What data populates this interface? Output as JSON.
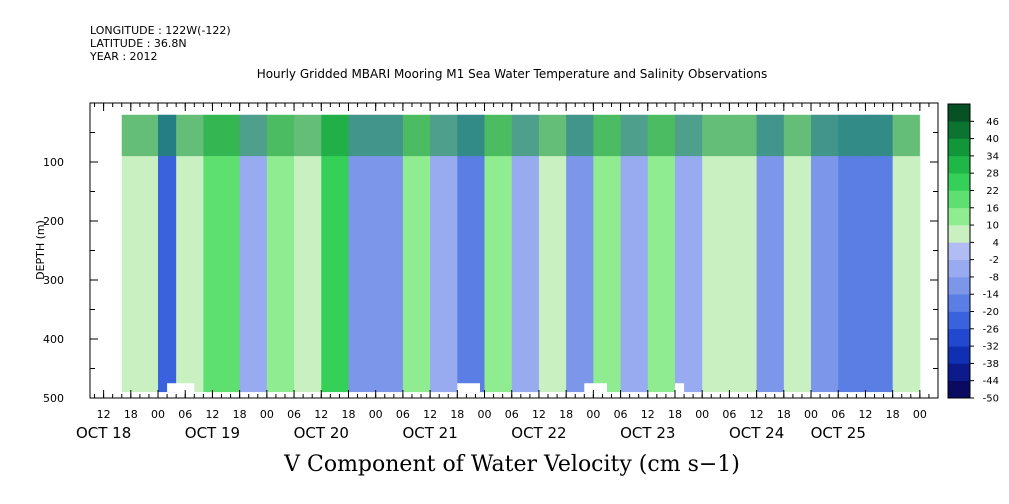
{
  "header": {
    "longitude": "LONGITUDE : 122W(-122)",
    "latitude": "LATITUDE : 36.8N",
    "year": "YEAR : 2012"
  },
  "chart_data": {
    "type": "heatmap",
    "title": "Hourly Gridded MBARI Mooring M1 Sea Water Temperature and Salinity Observations",
    "xlabel": "V Component of Water Velocity (cm s−1)",
    "ylabel": "DEPTH (m)",
    "ylim": [
      500,
      0
    ],
    "y_ticks": [
      100,
      200,
      300,
      400,
      500
    ],
    "y_tick_labels": [
      "100",
      "200",
      "300",
      "400",
      "500"
    ],
    "xlim_hours": [
      -15,
      172
    ],
    "x_hour_ticks": [
      -12,
      -6,
      0,
      6,
      12,
      18,
      24,
      30,
      36,
      42,
      48,
      54,
      60,
      66,
      72,
      78,
      84,
      90,
      96,
      102,
      108,
      114,
      120,
      126,
      132,
      138,
      144,
      150,
      156,
      162,
      168
    ],
    "x_hour_labels": [
      "12",
      "18",
      "00",
      "06",
      "12",
      "18",
      "00",
      "06",
      "12",
      "18",
      "00",
      "06",
      "12",
      "18",
      "00",
      "06",
      "12",
      "18",
      "00",
      "06",
      "12",
      "18",
      "00",
      "06",
      "12",
      "18",
      "00",
      "06",
      "12",
      "18",
      "00"
    ],
    "day_labels": [
      {
        "label": "OCT 18",
        "hour": -12
      },
      {
        "label": "OCT 19",
        "hour": 12
      },
      {
        "label": "OCT 20",
        "hour": 36
      },
      {
        "label": "OCT 21",
        "hour": 60
      },
      {
        "label": "OCT 22",
        "hour": 84
      },
      {
        "label": "OCT 23",
        "hour": 108
      },
      {
        "label": "OCT 24",
        "hour": 132
      },
      {
        "label": "OCT 25",
        "hour": 150
      }
    ],
    "data_extent": {
      "hour_start": -8,
      "hour_end": 168,
      "depth_top": 20,
      "depth_bottom": 490
    },
    "colorbar": {
      "levels": [
        -50,
        -44,
        -38,
        -32,
        -26,
        -20,
        -14,
        -8,
        -2,
        4,
        10,
        16,
        22,
        28,
        34,
        40,
        46
      ],
      "labels": [
        "-50",
        "-44",
        "-38",
        "-32",
        "-26",
        "-20",
        "-14",
        "-8",
        "-2",
        "4",
        "10",
        "16",
        "22",
        "28",
        "34",
        "40",
        "46"
      ],
      "colors": [
        "#0a0a60",
        "#0c1a8c",
        "#1030b4",
        "#2248d0",
        "#3a62dc",
        "#5a7ee4",
        "#7c96ea",
        "#98aaf0",
        "#b2bcf4",
        "#c8f0c0",
        "#90ec90",
        "#5ee070",
        "#34d058",
        "#1fb848",
        "#12963a",
        "#0b7430",
        "#075224"
      ]
    },
    "bands": [
      {
        "from_hour": -8,
        "to_hour": 0,
        "value": 4
      },
      {
        "from_hour": 0,
        "to_hour": 4,
        "value": -26
      },
      {
        "from_hour": 4,
        "to_hour": 10,
        "value": 8
      },
      {
        "from_hour": 10,
        "to_hour": 18,
        "value": 16
      },
      {
        "from_hour": 18,
        "to_hour": 24,
        "value": -8
      },
      {
        "from_hour": 24,
        "to_hour": 30,
        "value": 10
      },
      {
        "from_hour": 30,
        "to_hour": 36,
        "value": 4
      },
      {
        "from_hour": 36,
        "to_hour": 42,
        "value": 22
      },
      {
        "from_hour": 42,
        "to_hour": 48,
        "value": -10
      },
      {
        "from_hour": 48,
        "to_hour": 54,
        "value": -14
      },
      {
        "from_hour": 54,
        "to_hour": 60,
        "value": 10
      },
      {
        "from_hour": 60,
        "to_hour": 66,
        "value": -8
      },
      {
        "from_hour": 66,
        "to_hour": 72,
        "value": -16
      },
      {
        "from_hour": 72,
        "to_hour": 78,
        "value": 12
      },
      {
        "from_hour": 78,
        "to_hour": 84,
        "value": -6
      },
      {
        "from_hour": 84,
        "to_hour": 90,
        "value": 4
      },
      {
        "from_hour": 90,
        "to_hour": 96,
        "value": -12
      },
      {
        "from_hour": 96,
        "to_hour": 102,
        "value": 10
      },
      {
        "from_hour": 102,
        "to_hour": 108,
        "value": -8
      },
      {
        "from_hour": 108,
        "to_hour": 114,
        "value": 10
      },
      {
        "from_hour": 114,
        "to_hour": 120,
        "value": -6
      },
      {
        "from_hour": 120,
        "to_hour": 126,
        "value": 8
      },
      {
        "from_hour": 126,
        "to_hour": 132,
        "value": 4
      },
      {
        "from_hour": 132,
        "to_hour": 138,
        "value": -10
      },
      {
        "from_hour": 138,
        "to_hour": 144,
        "value": 6
      },
      {
        "from_hour": 144,
        "to_hour": 150,
        "value": -14
      },
      {
        "from_hour": 150,
        "to_hour": 156,
        "value": -20
      },
      {
        "from_hour": 156,
        "to_hour": 162,
        "value": -16
      },
      {
        "from_hour": 162,
        "to_hour": 168,
        "value": 4
      }
    ],
    "surface_layer": {
      "depth_top": 20,
      "depth_bottom": 90,
      "value": 34
    },
    "no_data_patches": [
      {
        "from_hour": 2,
        "to_hour": 8,
        "from_depth": 475,
        "to_depth": 490
      },
      {
        "from_hour": 66,
        "to_hour": 71,
        "from_depth": 475,
        "to_depth": 490
      },
      {
        "from_hour": 94,
        "to_hour": 99,
        "from_depth": 475,
        "to_depth": 490
      },
      {
        "from_hour": 114,
        "to_hour": 116,
        "from_depth": 475,
        "to_depth": 490
      }
    ],
    "grid": false,
    "legend": "right colorbar"
  }
}
